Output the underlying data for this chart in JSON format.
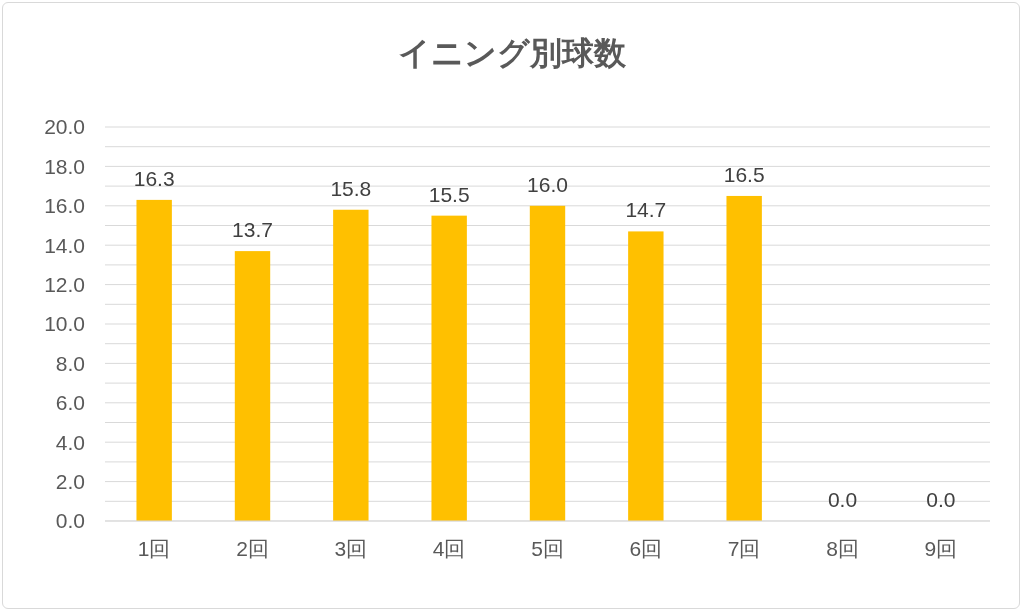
{
  "chart_data": {
    "type": "bar",
    "title": "イニング別球数",
    "categories": [
      "1回",
      "2回",
      "3回",
      "4回",
      "5回",
      "6回",
      "7回",
      "8回",
      "9回"
    ],
    "values": [
      16.3,
      13.7,
      15.8,
      15.5,
      16.0,
      14.7,
      16.5,
      0.0,
      0.0
    ],
    "value_labels": [
      "16.3",
      "13.7",
      "15.8",
      "15.5",
      "16.0",
      "14.7",
      "16.5",
      "0.0",
      "0.0"
    ],
    "color": "#ffc000",
    "ylim": [
      0,
      20
    ],
    "yticks": [
      {
        "value": 0,
        "label": "0.0"
      },
      {
        "value": 1,
        "label": null
      },
      {
        "value": 2,
        "label": "2.0"
      },
      {
        "value": 3,
        "label": null
      },
      {
        "value": 4,
        "label": "4.0"
      },
      {
        "value": 5,
        "label": null
      },
      {
        "value": 6,
        "label": "6.0"
      },
      {
        "value": 7,
        "label": null
      },
      {
        "value": 8,
        "label": "8.0"
      },
      {
        "value": 9,
        "label": null
      },
      {
        "value": 10,
        "label": "10.0"
      },
      {
        "value": 11,
        "label": null
      },
      {
        "value": 12,
        "label": "12.0"
      },
      {
        "value": 13,
        "label": null
      },
      {
        "value": 14,
        "label": "14.0"
      },
      {
        "value": 15,
        "label": null
      },
      {
        "value": 16,
        "label": "16.0"
      },
      {
        "value": 17,
        "label": null
      },
      {
        "value": 18,
        "label": "18.0"
      },
      {
        "value": 19,
        "label": null
      },
      {
        "value": 20,
        "label": "20.0"
      }
    ],
    "grid": "y"
  }
}
